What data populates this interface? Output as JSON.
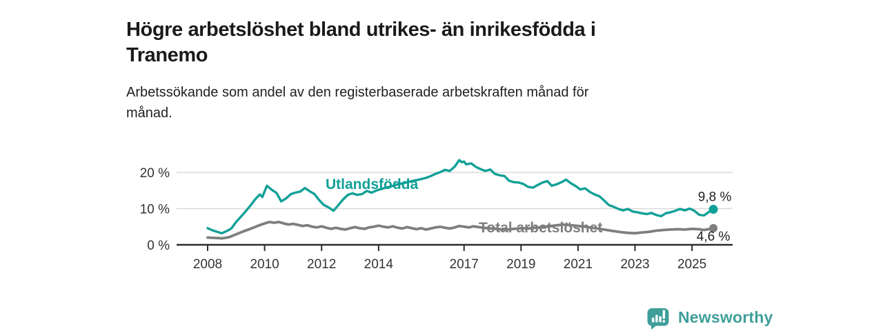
{
  "header": {
    "title_lines": [
      "Högre arbetslöshet bland utrikes- än inrikesfödda i",
      "Tranemo"
    ],
    "subtitle_lines": [
      "Arbetssökande som andel av den registerbaserade arbetskraften månad för",
      "månad."
    ]
  },
  "footer": {
    "brand": "Newsworthy"
  },
  "colors": {
    "teal": "#11A097",
    "gray": "#7E7E7E",
    "grid": "#D9D9D9",
    "axis": "#2B2B2B",
    "tick_text": "#333333",
    "value_text": "#1F1F1F",
    "brand_teal": "#3F9E99"
  },
  "chart_data": {
    "type": "line",
    "title": "Högre arbetslöshet bland utrikes- än inrikesfödda i Tranemo",
    "subtitle": "Arbetssökande som andel av den registerbaserade arbetskraften månad för månad.",
    "grid": "horizontal",
    "legend_position": "inline-labels",
    "xlim": [
      2007.9,
      2026.3
    ],
    "ylim": [
      0,
      25
    ],
    "x_ticks": [
      2008,
      2010,
      2012,
      2014,
      2017,
      2019,
      2021,
      2023,
      2025
    ],
    "y_ticks": [
      {
        "value": 0,
        "label": "0 %"
      },
      {
        "value": 10,
        "label": "10 %"
      },
      {
        "value": 20,
        "label": "20 %"
      }
    ],
    "series": [
      {
        "name": "Utlandsfödda",
        "color_key": "teal",
        "end_label": "9,8 %",
        "points": [
          [
            2008.0,
            4.6
          ],
          [
            2008.17,
            4.0
          ],
          [
            2008.33,
            3.6
          ],
          [
            2008.5,
            3.2
          ],
          [
            2008.67,
            3.8
          ],
          [
            2008.83,
            4.5
          ],
          [
            2009.0,
            6.3
          ],
          [
            2009.17,
            7.8
          ],
          [
            2009.33,
            9.2
          ],
          [
            2009.5,
            10.8
          ],
          [
            2009.67,
            12.6
          ],
          [
            2009.83,
            13.9
          ],
          [
            2009.92,
            13.2
          ],
          [
            2010.08,
            16.3
          ],
          [
            2010.25,
            15.2
          ],
          [
            2010.42,
            14.3
          ],
          [
            2010.58,
            12.0
          ],
          [
            2010.75,
            12.8
          ],
          [
            2010.92,
            14.0
          ],
          [
            2011.08,
            14.4
          ],
          [
            2011.25,
            14.7
          ],
          [
            2011.42,
            15.7
          ],
          [
            2011.58,
            14.8
          ],
          [
            2011.75,
            14.0
          ],
          [
            2011.92,
            12.3
          ],
          [
            2012.08,
            11.0
          ],
          [
            2012.25,
            10.3
          ],
          [
            2012.42,
            9.4
          ],
          [
            2012.58,
            10.9
          ],
          [
            2012.75,
            12.5
          ],
          [
            2012.92,
            13.8
          ],
          [
            2013.08,
            14.2
          ],
          [
            2013.25,
            13.8
          ],
          [
            2013.42,
            14.0
          ],
          [
            2013.58,
            14.9
          ],
          [
            2013.75,
            14.4
          ],
          [
            2013.92,
            15.0
          ],
          [
            2014.17,
            15.6
          ],
          [
            2014.42,
            16.1
          ],
          [
            2014.67,
            16.7
          ],
          [
            2014.92,
            17.1
          ],
          [
            2015.17,
            17.6
          ],
          [
            2015.42,
            18.0
          ],
          [
            2015.67,
            18.5
          ],
          [
            2015.83,
            19.0
          ],
          [
            2016.0,
            19.6
          ],
          [
            2016.17,
            20.1
          ],
          [
            2016.33,
            20.7
          ],
          [
            2016.5,
            20.4
          ],
          [
            2016.67,
            21.6
          ],
          [
            2016.83,
            23.4
          ],
          [
            2016.92,
            22.8
          ],
          [
            2017.0,
            23.0
          ],
          [
            2017.08,
            22.2
          ],
          [
            2017.25,
            22.5
          ],
          [
            2017.42,
            21.5
          ],
          [
            2017.58,
            20.9
          ],
          [
            2017.75,
            20.4
          ],
          [
            2017.92,
            20.8
          ],
          [
            2018.08,
            19.6
          ],
          [
            2018.25,
            19.2
          ],
          [
            2018.42,
            19.0
          ],
          [
            2018.58,
            17.7
          ],
          [
            2018.75,
            17.3
          ],
          [
            2018.92,
            17.2
          ],
          [
            2019.08,
            16.8
          ],
          [
            2019.25,
            16.0
          ],
          [
            2019.42,
            15.8
          ],
          [
            2019.58,
            16.5
          ],
          [
            2019.75,
            17.2
          ],
          [
            2019.92,
            17.6
          ],
          [
            2020.08,
            16.3
          ],
          [
            2020.25,
            16.7
          ],
          [
            2020.42,
            17.3
          ],
          [
            2020.58,
            18.0
          ],
          [
            2020.75,
            17.0
          ],
          [
            2020.92,
            16.2
          ],
          [
            2021.08,
            15.3
          ],
          [
            2021.25,
            15.6
          ],
          [
            2021.42,
            14.6
          ],
          [
            2021.58,
            13.9
          ],
          [
            2021.75,
            13.4
          ],
          [
            2021.92,
            12.2
          ],
          [
            2022.08,
            11.0
          ],
          [
            2022.25,
            10.5
          ],
          [
            2022.42,
            9.9
          ],
          [
            2022.58,
            9.5
          ],
          [
            2022.75,
            9.9
          ],
          [
            2022.92,
            9.2
          ],
          [
            2023.08,
            9.0
          ],
          [
            2023.25,
            8.7
          ],
          [
            2023.42,
            8.5
          ],
          [
            2023.58,
            8.8
          ],
          [
            2023.75,
            8.2
          ],
          [
            2023.92,
            7.9
          ],
          [
            2024.08,
            8.7
          ],
          [
            2024.25,
            9.0
          ],
          [
            2024.42,
            9.4
          ],
          [
            2024.58,
            9.9
          ],
          [
            2024.75,
            9.5
          ],
          [
            2024.92,
            10.0
          ],
          [
            2025.08,
            9.4
          ],
          [
            2025.25,
            8.3
          ],
          [
            2025.42,
            8.1
          ],
          [
            2025.58,
            9.0
          ],
          [
            2025.75,
            9.8
          ]
        ]
      },
      {
        "name": "Total arbetslöshet",
        "color_key": "gray",
        "end_label": "4,6 %",
        "points": [
          [
            2008.0,
            2.0
          ],
          [
            2008.25,
            1.9
          ],
          [
            2008.5,
            1.8
          ],
          [
            2008.75,
            2.1
          ],
          [
            2009.0,
            2.9
          ],
          [
            2009.25,
            3.7
          ],
          [
            2009.5,
            4.4
          ],
          [
            2009.75,
            5.2
          ],
          [
            2010.0,
            5.9
          ],
          [
            2010.17,
            6.3
          ],
          [
            2010.33,
            6.1
          ],
          [
            2010.5,
            6.3
          ],
          [
            2010.67,
            5.9
          ],
          [
            2010.83,
            5.6
          ],
          [
            2011.0,
            5.8
          ],
          [
            2011.17,
            5.5
          ],
          [
            2011.33,
            5.2
          ],
          [
            2011.5,
            5.4
          ],
          [
            2011.67,
            5.0
          ],
          [
            2011.83,
            4.8
          ],
          [
            2012.0,
            5.1
          ],
          [
            2012.17,
            4.7
          ],
          [
            2012.33,
            4.4
          ],
          [
            2012.5,
            4.7
          ],
          [
            2012.67,
            4.4
          ],
          [
            2012.83,
            4.2
          ],
          [
            2013.0,
            4.6
          ],
          [
            2013.17,
            4.9
          ],
          [
            2013.33,
            4.6
          ],
          [
            2013.5,
            4.4
          ],
          [
            2013.67,
            4.8
          ],
          [
            2013.83,
            5.0
          ],
          [
            2014.0,
            5.3
          ],
          [
            2014.17,
            5.0
          ],
          [
            2014.33,
            4.8
          ],
          [
            2014.5,
            5.1
          ],
          [
            2014.67,
            4.7
          ],
          [
            2014.83,
            4.5
          ],
          [
            2015.0,
            4.9
          ],
          [
            2015.17,
            4.6
          ],
          [
            2015.33,
            4.3
          ],
          [
            2015.5,
            4.6
          ],
          [
            2015.67,
            4.2
          ],
          [
            2015.83,
            4.5
          ],
          [
            2016.0,
            4.8
          ],
          [
            2016.17,
            5.0
          ],
          [
            2016.33,
            4.7
          ],
          [
            2016.5,
            4.5
          ],
          [
            2016.67,
            4.8
          ],
          [
            2016.83,
            5.2
          ],
          [
            2017.0,
            5.0
          ],
          [
            2017.17,
            4.8
          ],
          [
            2017.33,
            5.1
          ],
          [
            2017.5,
            4.9
          ],
          [
            2017.67,
            4.7
          ],
          [
            2017.83,
            4.6
          ],
          [
            2018.0,
            4.5
          ],
          [
            2018.25,
            4.3
          ],
          [
            2018.5,
            4.2
          ],
          [
            2018.75,
            4.4
          ],
          [
            2019.0,
            4.6
          ],
          [
            2019.25,
            4.5
          ],
          [
            2019.5,
            4.7
          ],
          [
            2019.75,
            4.9
          ],
          [
            2020.0,
            5.1
          ],
          [
            2020.25,
            5.4
          ],
          [
            2020.5,
            5.6
          ],
          [
            2020.75,
            5.4
          ],
          [
            2021.0,
            5.2
          ],
          [
            2021.25,
            5.0
          ],
          [
            2021.5,
            4.7
          ],
          [
            2021.75,
            4.4
          ],
          [
            2022.0,
            4.1
          ],
          [
            2022.25,
            3.8
          ],
          [
            2022.5,
            3.5
          ],
          [
            2022.75,
            3.3
          ],
          [
            2023.0,
            3.2
          ],
          [
            2023.25,
            3.4
          ],
          [
            2023.5,
            3.6
          ],
          [
            2023.75,
            3.9
          ],
          [
            2024.0,
            4.1
          ],
          [
            2024.25,
            4.2
          ],
          [
            2024.5,
            4.3
          ],
          [
            2024.75,
            4.2
          ],
          [
            2025.0,
            4.4
          ],
          [
            2025.25,
            4.3
          ],
          [
            2025.42,
            4.1
          ],
          [
            2025.58,
            4.3
          ],
          [
            2025.75,
            4.6
          ]
        ]
      }
    ]
  }
}
